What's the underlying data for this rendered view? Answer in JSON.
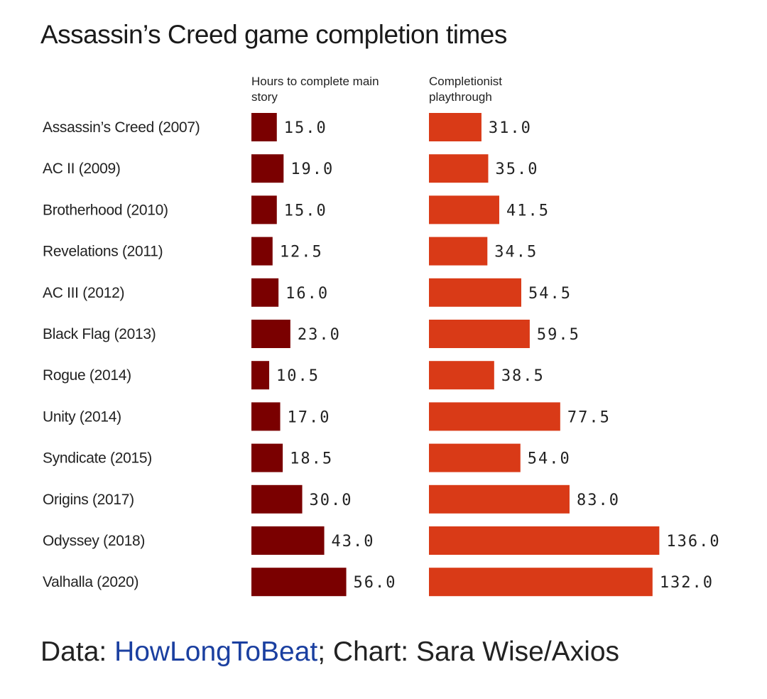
{
  "chart_data": {
    "type": "bar",
    "orientation": "horizontal",
    "title": "Assassin’s Creed game completion times",
    "categories": [
      "Assassin’s Creed (2007)",
      "AC II (2009)",
      "Brotherhood (2010)",
      "Revelations (2011)",
      "AC III (2012)",
      "Black Flag (2013)",
      "Rogue (2014)",
      "Unity (2014)",
      "Syndicate (2015)",
      "Origins (2017)",
      "Odyssey (2018)",
      "Valhalla (2020)"
    ],
    "series": [
      {
        "name": "Hours to complete main story",
        "color": "#7a0000",
        "values": [
          15.0,
          19.0,
          15.0,
          12.5,
          16.0,
          23.0,
          10.5,
          17.0,
          18.5,
          30.0,
          43.0,
          56.0
        ]
      },
      {
        "name": "Completionist playthrough",
        "color": "#d93a17",
        "values": [
          31.0,
          35.0,
          41.5,
          34.5,
          54.5,
          59.5,
          38.5,
          77.5,
          54.0,
          83.0,
          136.0,
          132.0
        ]
      }
    ],
    "data_labels": true,
    "grid": false
  },
  "footer": {
    "prefix": "Data: ",
    "source_link": "HowLongToBeat",
    "suffix": "; Chart: Sara Wise/Axios"
  }
}
